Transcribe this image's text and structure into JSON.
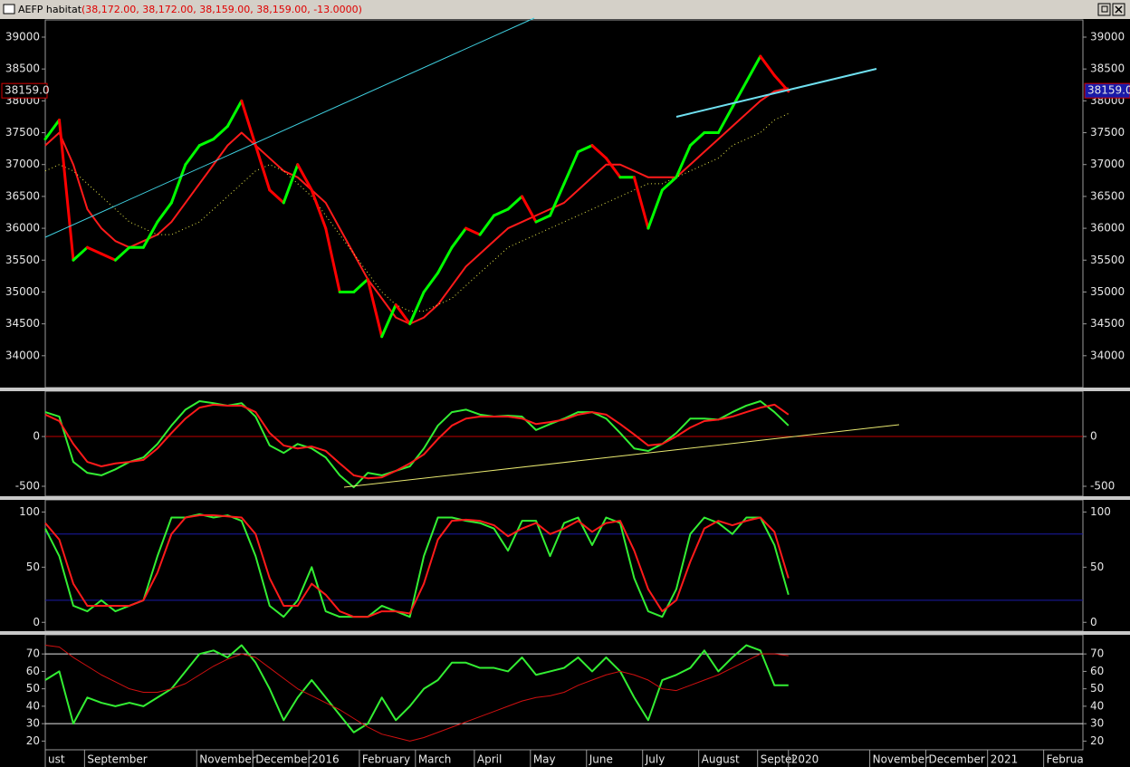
{
  "window": {
    "title": "AEFP habitat",
    "quote": "(38,172.00, 38,172.00, 38,159.00, 38,159.00, -13.0000)"
  },
  "x_axis": {
    "xlim": [
      0,
      18.5
    ],
    "x": [
      0,
      0.25,
      0.5,
      0.75,
      1,
      1.25,
      1.5,
      1.75,
      2,
      2.25,
      2.5,
      2.75,
      3,
      3.25,
      3.5,
      3.75,
      4,
      4.25,
      4.5,
      4.75,
      5,
      5.25,
      5.5,
      5.75,
      6,
      6.25,
      6.5,
      6.75,
      7,
      7.25,
      7.5,
      7.75,
      8,
      8.25,
      8.5,
      8.75,
      9,
      9.25,
      9.5,
      9.75,
      10,
      10.25,
      10.5,
      10.75,
      11,
      11.25,
      11.5,
      11.75,
      12,
      12.25,
      12.5,
      12.75,
      13,
      13.25
    ],
    "xticks": [
      {
        "value": 0,
        "label": "ust"
      },
      {
        "value": 0.7,
        "label": "September"
      },
      {
        "value": 2.7,
        "label": "November"
      },
      {
        "value": 3.7,
        "label": "December"
      },
      {
        "value": 4.7,
        "label": "2016"
      },
      {
        "value": 5.6,
        "label": "February"
      },
      {
        "value": 6.6,
        "label": "March"
      },
      {
        "value": 7.65,
        "label": "April"
      },
      {
        "value": 8.65,
        "label": "May"
      },
      {
        "value": 9.65,
        "label": "June"
      },
      {
        "value": 10.65,
        "label": "July"
      },
      {
        "value": 11.65,
        "label": "August"
      },
      {
        "value": 12.7,
        "label": "Septei"
      },
      {
        "value": 13.25,
        "label": "2020"
      },
      {
        "value": 14.7,
        "label": "November"
      },
      {
        "value": 15.7,
        "label": "December"
      },
      {
        "value": 16.8,
        "label": "2021"
      },
      {
        "value": 17.8,
        "label": "Februa"
      }
    ]
  },
  "chart_data": [
    {
      "type": "price",
      "ylim": [
        33500,
        39270
      ],
      "yticks": [
        34000,
        34500,
        35000,
        35500,
        36000,
        36500,
        37000,
        37500,
        38000,
        38500,
        39000
      ],
      "last_value": 38159,
      "last_label": "38159.0",
      "series": [
        {
          "color": "#00ff00",
          "down_color": "#ff0000",
          "width": 3,
          "values": [
            37400,
            37700,
            35500,
            35700,
            35600,
            35500,
            35700,
            35700,
            36100,
            36400,
            37000,
            37300,
            37400,
            37600,
            38000,
            37300,
            36600,
            36400,
            37000,
            36600,
            36000,
            35000,
            35000,
            35200,
            34300,
            34800,
            34500,
            35000,
            35300,
            35700,
            36000,
            35900,
            36200,
            36300,
            36500,
            36100,
            36200,
            36700,
            37200,
            37300,
            37100,
            36800,
            36800,
            36000,
            36600,
            36800,
            37300,
            37500,
            37500,
            37900,
            38300,
            38700,
            38400,
            38150
          ]
        },
        {
          "color": "#ff1a1a",
          "width": 2,
          "values": [
            37300,
            37500,
            37000,
            36300,
            36000,
            35800,
            35700,
            35800,
            35900,
            36100,
            36400,
            36700,
            37000,
            37300,
            37500,
            37300,
            37100,
            36900,
            36800,
            36600,
            36400,
            36000,
            35600,
            35200,
            34900,
            34600,
            34500,
            34600,
            34800,
            35100,
            35400,
            35600,
            35800,
            36000,
            36100,
            36200,
            36300,
            36400,
            36600,
            36800,
            37000,
            37000,
            36900,
            36800,
            36800,
            36800,
            37000,
            37200,
            37400,
            37600,
            37800,
            38000,
            38150,
            38200
          ]
        },
        {
          "color": "#e8e84a",
          "width": 1,
          "dotted": true,
          "values": [
            36900,
            37000,
            36900,
            36700,
            36500,
            36300,
            36100,
            36000,
            35900,
            35900,
            36000,
            36100,
            36300,
            36500,
            36700,
            36900,
            37000,
            36900,
            36700,
            36500,
            36200,
            35900,
            35600,
            35300,
            35000,
            34800,
            34700,
            34700,
            34800,
            34900,
            35100,
            35300,
            35500,
            35700,
            35800,
            35900,
            36000,
            36100,
            36200,
            36300,
            36400,
            36500,
            36600,
            36700,
            36700,
            36800,
            36900,
            37000,
            37100,
            37300,
            37400,
            37500,
            37700,
            37800
          ]
        }
      ]
    },
    {
      "type": "line",
      "ylim": [
        -600,
        455
      ],
      "yticks": [
        -500,
        0
      ],
      "levels": [
        0
      ],
      "level_color": "#c00000",
      "series": [
        {
          "color": "#33ee33",
          "width": 2,
          "values": [
            245,
            200,
            -255,
            -365,
            -390,
            -330,
            -255,
            -210,
            -75,
            110,
            270,
            355,
            335,
            310,
            335,
            200,
            -90,
            -165,
            -75,
            -120,
            -210,
            -390,
            -510,
            -365,
            -390,
            -345,
            -300,
            -120,
            110,
            245,
            270,
            220,
            200,
            210,
            200,
            65,
            125,
            180,
            245,
            245,
            180,
            35,
            -120,
            -145,
            -75,
            35,
            180,
            180,
            170,
            245,
            310,
            355,
            245,
            110
          ]
        },
        {
          "color": "#ff1a1a",
          "width": 2,
          "values": [
            220,
            155,
            -75,
            -255,
            -300,
            -270,
            -255,
            -235,
            -120,
            35,
            180,
            290,
            320,
            310,
            310,
            245,
            35,
            -90,
            -120,
            -100,
            -145,
            -270,
            -390,
            -420,
            -410,
            -345,
            -270,
            -180,
            -25,
            110,
            180,
            200,
            200,
            200,
            180,
            125,
            145,
            170,
            220,
            245,
            220,
            125,
            20,
            -90,
            -75,
            0,
            90,
            155,
            170,
            200,
            245,
            290,
            320,
            220
          ]
        }
      ]
    },
    {
      "type": "line",
      "ylim": [
        -8,
        111
      ],
      "yticks": [
        0,
        50,
        100
      ],
      "levels": [
        20,
        80
      ],
      "level_color": "#1a1aa8",
      "series": [
        {
          "color": "#33ee33",
          "width": 2,
          "values": [
            85,
            60,
            15,
            10,
            20,
            10,
            15,
            20,
            60,
            95,
            95,
            98,
            95,
            97,
            92,
            60,
            15,
            5,
            20,
            50,
            10,
            5,
            5,
            5,
            15,
            10,
            5,
            60,
            95,
            95,
            92,
            90,
            85,
            65,
            92,
            92,
            60,
            90,
            95,
            70,
            95,
            90,
            40,
            10,
            5,
            30,
            80,
            95,
            90,
            80,
            95,
            95,
            70,
            25
          ]
        },
        {
          "color": "#ff1a1a",
          "width": 2,
          "values": [
            90,
            75,
            35,
            15,
            15,
            15,
            15,
            20,
            45,
            80,
            95,
            97,
            97,
            96,
            95,
            80,
            40,
            15,
            15,
            35,
            25,
            10,
            5,
            5,
            10,
            10,
            8,
            35,
            75,
            92,
            93,
            92,
            88,
            78,
            85,
            90,
            80,
            85,
            92,
            82,
            90,
            92,
            65,
            30,
            10,
            20,
            55,
            85,
            92,
            88,
            92,
            95,
            82,
            40
          ]
        }
      ]
    },
    {
      "type": "line",
      "ylim": [
        15,
        81
      ],
      "yticks": [
        20,
        30,
        40,
        50,
        60,
        70
      ],
      "levels": [
        30,
        70
      ],
      "level_color": "#e6e6e6",
      "series": [
        {
          "color": "#33ee33",
          "width": 2,
          "values": [
            55,
            60,
            30,
            45,
            42,
            40,
            42,
            40,
            45,
            50,
            60,
            70,
            72,
            68,
            75,
            65,
            50,
            32,
            45,
            55,
            45,
            35,
            25,
            30,
            45,
            32,
            40,
            50,
            55,
            65,
            65,
            62,
            62,
            60,
            68,
            58,
            60,
            62,
            68,
            60,
            68,
            60,
            45,
            32,
            55,
            58,
            62,
            72,
            60,
            68,
            75,
            72,
            52,
            52
          ]
        },
        {
          "color": "#d01010",
          "width": 1,
          "values": [
            75,
            74,
            68,
            63,
            58,
            54,
            50,
            48,
            48,
            50,
            53,
            58,
            63,
            67,
            70,
            68,
            62,
            56,
            50,
            46,
            42,
            38,
            33,
            28,
            24,
            22,
            20,
            22,
            25,
            28,
            31,
            34,
            37,
            40,
            43,
            45,
            46,
            48,
            52,
            55,
            58,
            60,
            58,
            55,
            50,
            49,
            52,
            55,
            58,
            62,
            66,
            70,
            70,
            69
          ]
        }
      ]
    }
  ]
}
